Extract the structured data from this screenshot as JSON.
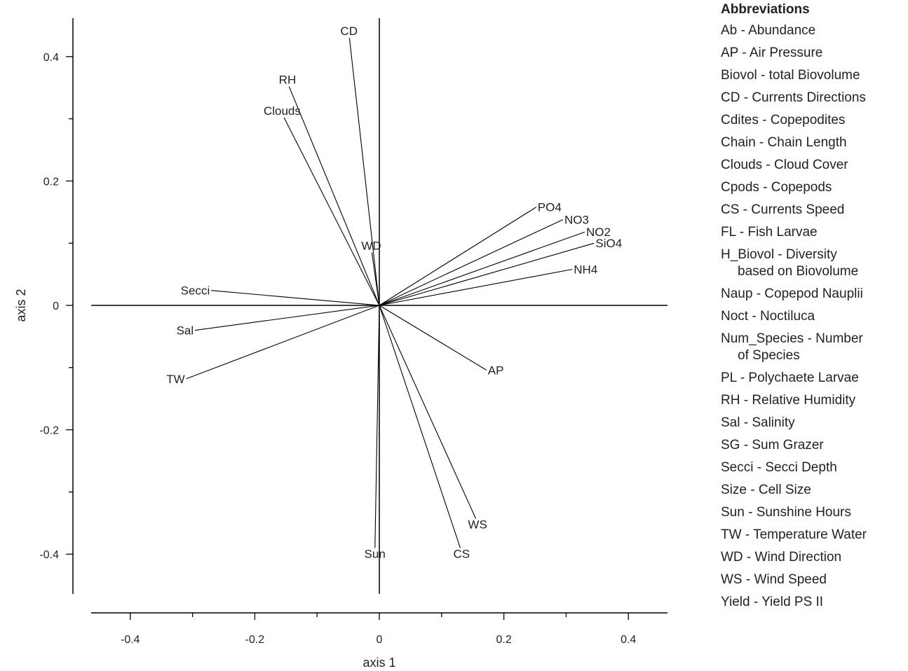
{
  "chart_data": {
    "type": "biplot",
    "xlabel": "axis 1",
    "ylabel": "axis 2",
    "xlim": [
      -0.46,
      0.46
    ],
    "ylim": [
      -0.46,
      0.46
    ],
    "x_ticks": [
      -0.4,
      -0.2,
      0,
      0.2,
      0.4
    ],
    "x_tick_labels": [
      "-0.4",
      "-0.2",
      "0",
      "0.2",
      "0.4"
    ],
    "y_ticks": [
      -0.4,
      -0.2,
      0,
      0.2,
      0.4
    ],
    "y_tick_labels": [
      "-0.4",
      "-0.2",
      "0",
      "0.2",
      "0.4"
    ],
    "grid": false,
    "vectors": [
      {
        "label": "CD",
        "x": -0.048,
        "y": 0.43
      },
      {
        "label": "RH",
        "x": -0.145,
        "y": 0.352
      },
      {
        "label": "Clouds",
        "x": -0.153,
        "y": 0.302
      },
      {
        "label": "WD",
        "x": -0.012,
        "y": 0.085
      },
      {
        "label": "PO4",
        "x": 0.252,
        "y": 0.158
      },
      {
        "label": "NO3",
        "x": 0.295,
        "y": 0.138
      },
      {
        "label": "NO2",
        "x": 0.33,
        "y": 0.118
      },
      {
        "label": "SiO4",
        "x": 0.345,
        "y": 0.1
      },
      {
        "label": "NH4",
        "x": 0.31,
        "y": 0.058
      },
      {
        "label": "Secci",
        "x": -0.27,
        "y": 0.024
      },
      {
        "label": "Sal",
        "x": -0.296,
        "y": -0.04
      },
      {
        "label": "TW",
        "x": -0.31,
        "y": -0.118
      },
      {
        "label": "AP",
        "x": 0.172,
        "y": -0.104
      },
      {
        "label": "WS",
        "x": 0.155,
        "y": -0.343
      },
      {
        "label": "CS",
        "x": 0.13,
        "y": -0.39
      },
      {
        "label": "Sun",
        "x": -0.007,
        "y": -0.39
      }
    ],
    "legend": {
      "title": "Abbreviations",
      "items": [
        "Ab - Abundance",
        "AP - Air Pressure",
        "Biovol - total Biovolume",
        "CD - Currents Directions",
        "Cdites - Copepodites",
        "Chain - Chain Length",
        "Clouds - Cloud Cover",
        "Cpods - Copepods",
        "CS - Currents Speed",
        "FL - Fish Larvae",
        "H_Biovol - Diversity\nbased on Biovolume",
        "Naup - Copepod Nauplii",
        "Noct - Noctiluca",
        "Num_Species - Number\nof Species",
        "PL - Polychaete Larvae",
        "RH - Relative Humidity",
        "Sal - Salinity",
        "SG - Sum Grazer",
        "Secci - Secci Depth",
        "Size - Cell Size",
        "Sun - Sunshine Hours",
        "TW - Temperature Water",
        "WD - Wind Direction",
        "WS - Wind Speed",
        "Yield - Yield PS II"
      ]
    }
  }
}
